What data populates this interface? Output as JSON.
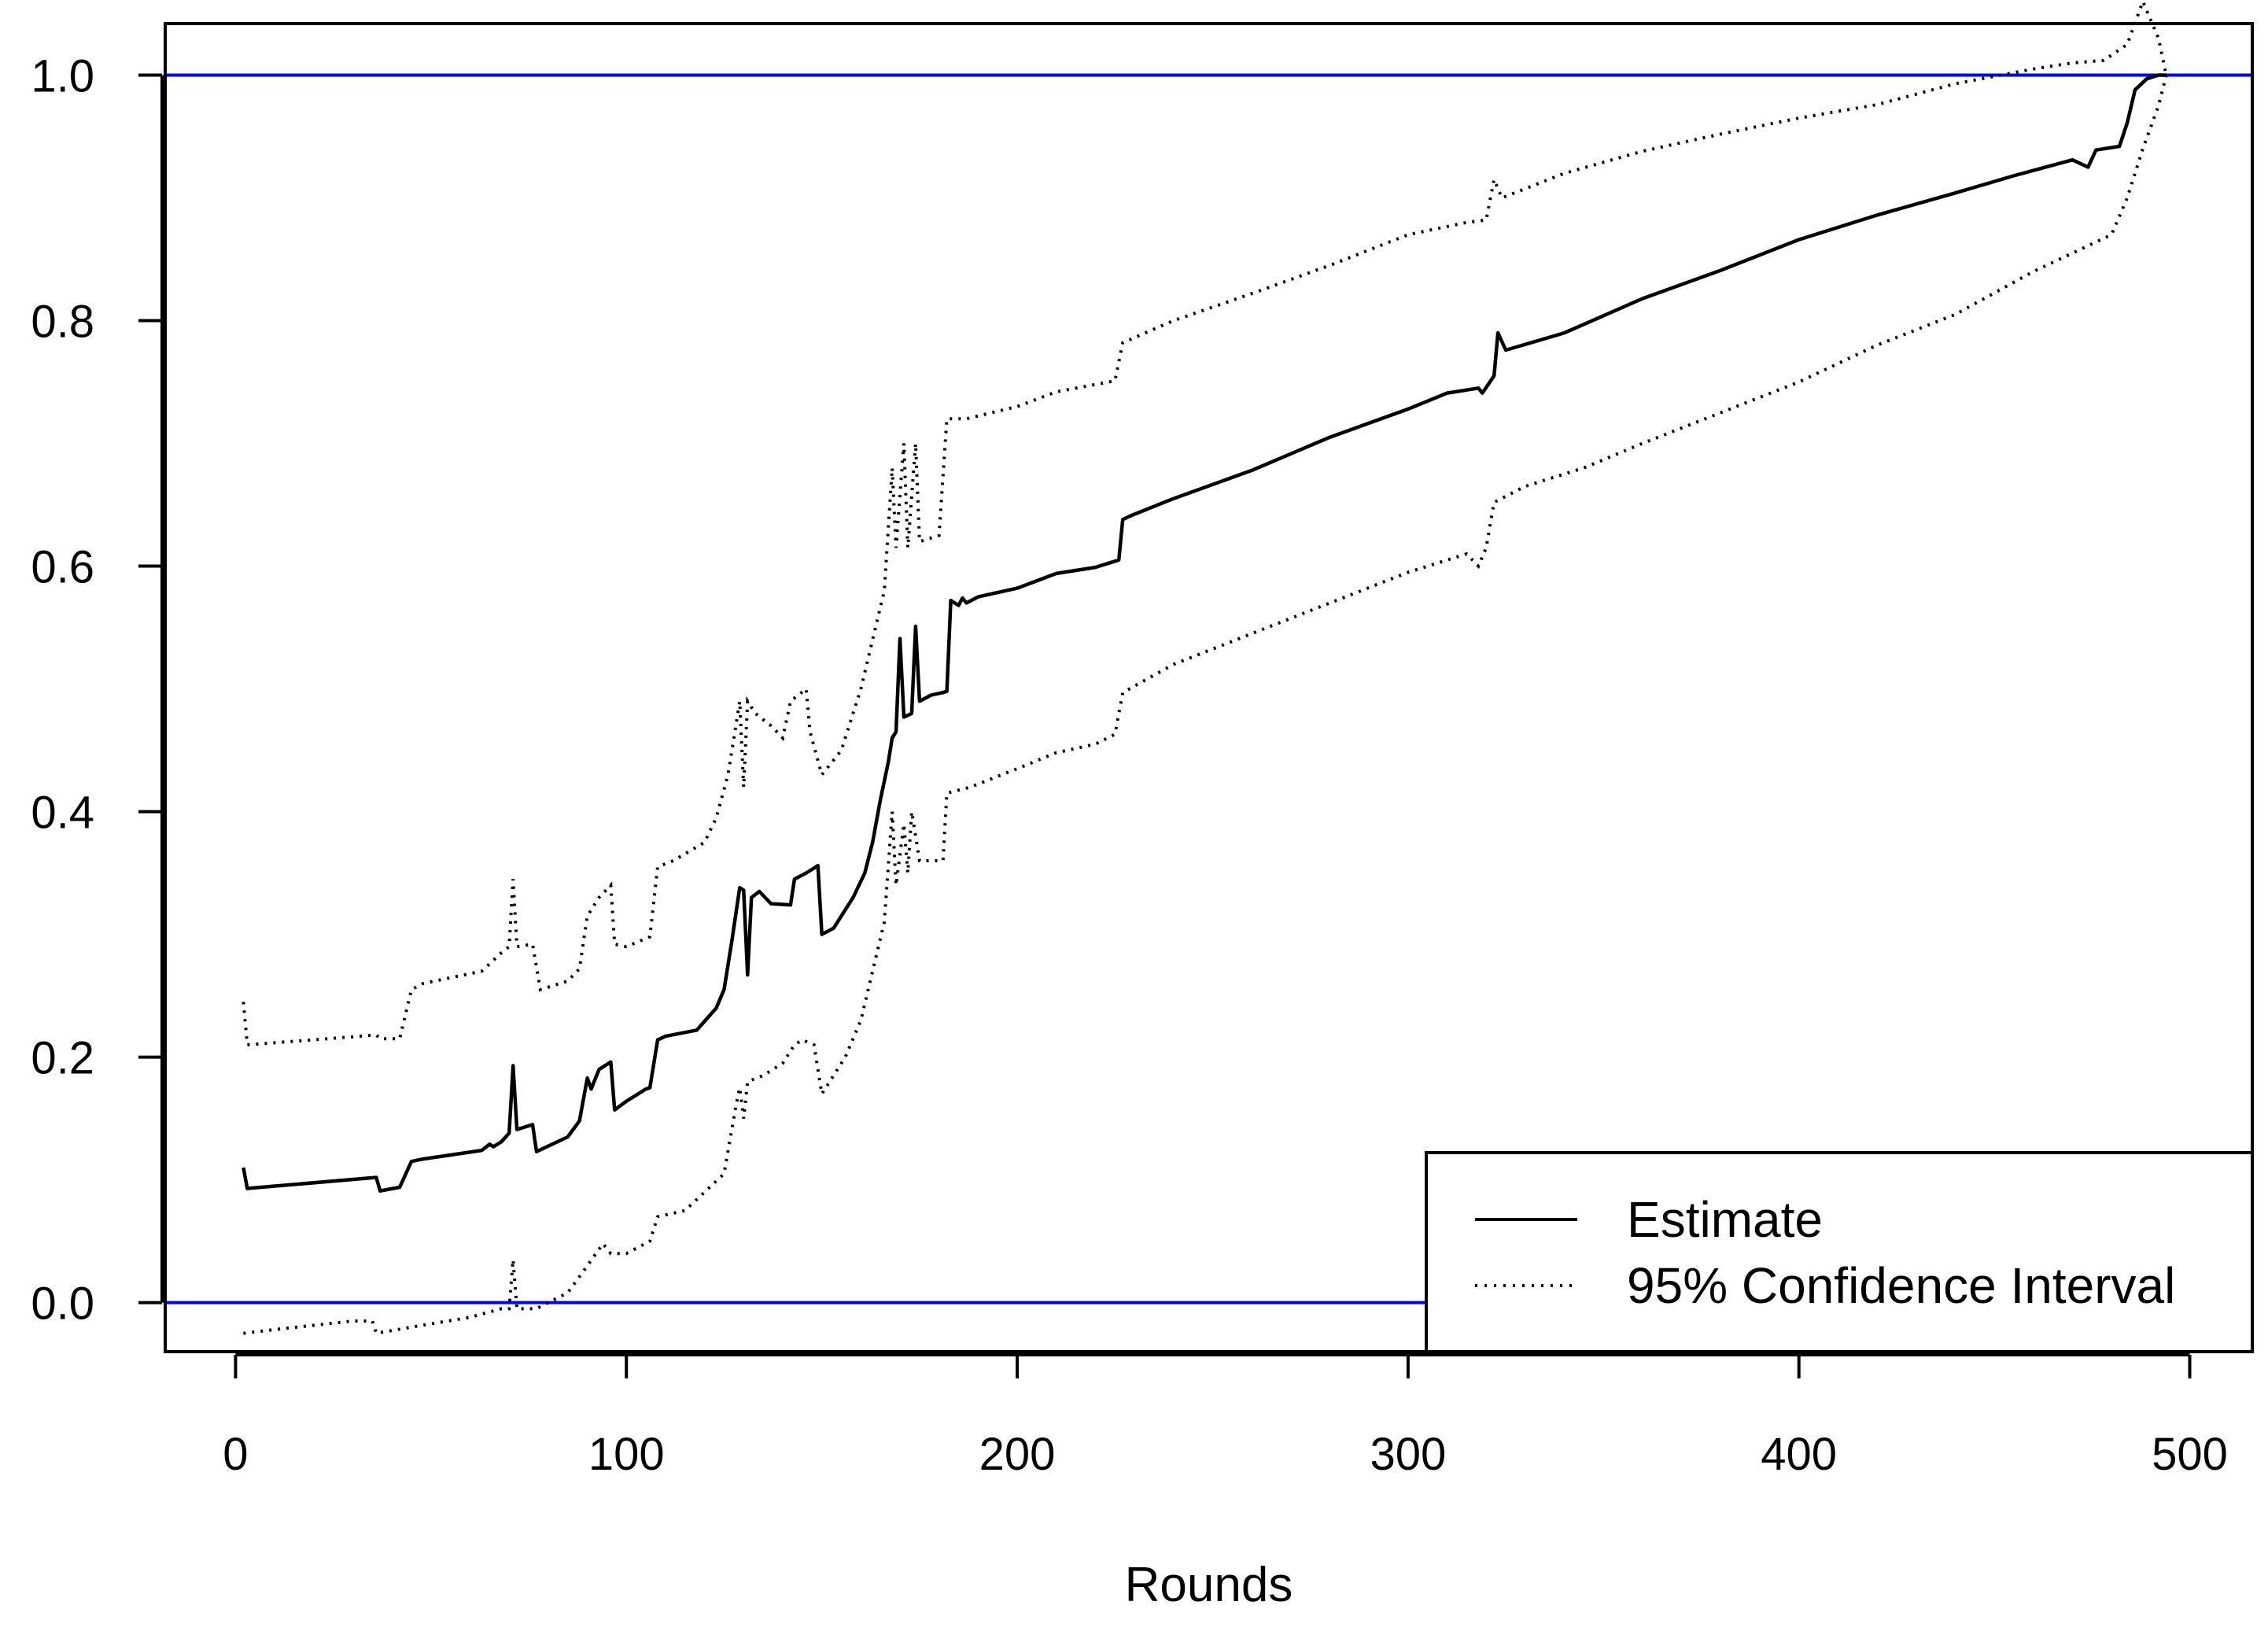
{
  "chart_data": {
    "type": "line",
    "title": "",
    "xlabel": "Rounds",
    "ylabel": "",
    "xlim": [
      -18,
      516
    ],
    "ylim": [
      -0.04,
      1.042
    ],
    "x_ticks": [
      0,
      100,
      200,
      300,
      400,
      500
    ],
    "x_tick_labels": [
      "0",
      "100",
      "200",
      "300",
      "400",
      "500"
    ],
    "y_ticks": [
      0.0,
      0.2,
      0.4,
      0.6,
      0.8,
      1.0
    ],
    "y_tick_labels": [
      "0.0",
      "0.2",
      "0.4",
      "0.6",
      "0.8",
      "1.0"
    ],
    "grid": false,
    "legend_position": "bottom-right",
    "reference_lines": [
      {
        "y": 1.0,
        "color": "#0000ee"
      },
      {
        "y": 0.0,
        "color": "#0000ee"
      }
    ],
    "series": [
      {
        "name": "Estimate",
        "style": "solid",
        "color": "#000000",
        "points": [
          [
            2,
            0.11
          ],
          [
            3,
            0.093
          ],
          [
            36,
            0.102
          ],
          [
            37,
            0.091
          ],
          [
            42,
            0.094
          ],
          [
            45,
            0.115
          ],
          [
            48,
            0.117
          ],
          [
            63,
            0.124
          ],
          [
            65,
            0.129
          ],
          [
            66,
            0.127
          ],
          [
            68,
            0.131
          ],
          [
            70,
            0.138
          ],
          [
            71,
            0.193
          ],
          [
            72,
            0.141
          ],
          [
            76,
            0.145
          ],
          [
            77,
            0.123
          ],
          [
            85,
            0.135
          ],
          [
            88,
            0.148
          ],
          [
            90,
            0.183
          ],
          [
            91,
            0.174
          ],
          [
            93,
            0.19
          ],
          [
            96,
            0.196
          ],
          [
            97,
            0.157
          ],
          [
            100,
            0.164
          ],
          [
            105,
            0.174
          ],
          [
            106,
            0.175
          ],
          [
            108,
            0.214
          ],
          [
            110,
            0.217
          ],
          [
            118,
            0.222
          ],
          [
            123,
            0.24
          ],
          [
            125,
            0.255
          ],
          [
            127,
            0.295
          ],
          [
            129,
            0.338
          ],
          [
            130,
            0.336
          ],
          [
            131,
            0.267
          ],
          [
            132,
            0.33
          ],
          [
            134,
            0.335
          ],
          [
            137,
            0.325
          ],
          [
            142,
            0.324
          ],
          [
            143,
            0.345
          ],
          [
            146,
            0.35
          ],
          [
            149,
            0.356
          ],
          [
            150,
            0.3
          ],
          [
            153,
            0.305
          ],
          [
            158,
            0.33
          ],
          [
            161,
            0.35
          ],
          [
            163,
            0.375
          ],
          [
            165,
            0.41
          ],
          [
            167,
            0.44
          ],
          [
            168,
            0.46
          ],
          [
            169,
            0.465
          ],
          [
            170,
            0.541
          ],
          [
            171,
            0.477
          ],
          [
            173,
            0.48
          ],
          [
            174,
            0.551
          ],
          [
            175,
            0.49
          ],
          [
            178,
            0.495
          ],
          [
            181,
            0.497
          ],
          [
            182,
            0.498
          ],
          [
            183,
            0.572
          ],
          [
            185,
            0.568
          ],
          [
            186,
            0.574
          ],
          [
            187,
            0.57
          ],
          [
            190,
            0.575
          ],
          [
            200,
            0.582
          ],
          [
            210,
            0.594
          ],
          [
            220,
            0.599
          ],
          [
            226,
            0.605
          ],
          [
            227,
            0.638
          ],
          [
            229,
            0.641
          ],
          [
            240,
            0.655
          ],
          [
            260,
            0.678
          ],
          [
            280,
            0.705
          ],
          [
            300,
            0.728
          ],
          [
            310,
            0.741
          ],
          [
            318,
            0.745
          ],
          [
            319,
            0.741
          ],
          [
            322,
            0.755
          ],
          [
            323,
            0.79
          ],
          [
            325,
            0.776
          ],
          [
            340,
            0.79
          ],
          [
            360,
            0.818
          ],
          [
            380,
            0.841
          ],
          [
            400,
            0.866
          ],
          [
            420,
            0.886
          ],
          [
            440,
            0.904
          ],
          [
            455,
            0.918
          ],
          [
            470,
            0.931
          ],
          [
            474,
            0.925
          ],
          [
            476,
            0.939
          ],
          [
            482,
            0.942
          ],
          [
            484,
            0.961
          ],
          [
            486,
            0.988
          ],
          [
            489,
            0.997
          ],
          [
            492,
            1.0
          ],
          [
            494,
            1.0
          ]
        ]
      },
      {
        "name": "95% Confidence Interval",
        "style": "dotted",
        "color": "#000000",
        "upper": [
          [
            2,
            0.245
          ],
          [
            3,
            0.21
          ],
          [
            36,
            0.218
          ],
          [
            37,
            0.215
          ],
          [
            42,
            0.215
          ],
          [
            45,
            0.255
          ],
          [
            48,
            0.26
          ],
          [
            63,
            0.27
          ],
          [
            68,
            0.285
          ],
          [
            70,
            0.29
          ],
          [
            71,
            0.345
          ],
          [
            72,
            0.29
          ],
          [
            76,
            0.292
          ],
          [
            78,
            0.255
          ],
          [
            85,
            0.262
          ],
          [
            88,
            0.272
          ],
          [
            90,
            0.315
          ],
          [
            93,
            0.33
          ],
          [
            96,
            0.34
          ],
          [
            97,
            0.292
          ],
          [
            100,
            0.29
          ],
          [
            106,
            0.298
          ],
          [
            108,
            0.355
          ],
          [
            112,
            0.36
          ],
          [
            120,
            0.375
          ],
          [
            123,
            0.395
          ],
          [
            126,
            0.43
          ],
          [
            128,
            0.47
          ],
          [
            129,
            0.49
          ],
          [
            130,
            0.42
          ],
          [
            131,
            0.49
          ],
          [
            133,
            0.48
          ],
          [
            137,
            0.47
          ],
          [
            140,
            0.46
          ],
          [
            142,
            0.49
          ],
          [
            146,
            0.5
          ],
          [
            147,
            0.465
          ],
          [
            150,
            0.43
          ],
          [
            155,
            0.45
          ],
          [
            160,
            0.5
          ],
          [
            163,
            0.54
          ],
          [
            166,
            0.58
          ],
          [
            168,
            0.68
          ],
          [
            169,
            0.615
          ],
          [
            171,
            0.7
          ],
          [
            172,
            0.615
          ],
          [
            174,
            0.7
          ],
          [
            175,
            0.62
          ],
          [
            180,
            0.625
          ],
          [
            182,
            0.72
          ],
          [
            187,
            0.72
          ],
          [
            200,
            0.73
          ],
          [
            210,
            0.742
          ],
          [
            220,
            0.748
          ],
          [
            225,
            0.751
          ],
          [
            227,
            0.782
          ],
          [
            240,
            0.8
          ],
          [
            260,
            0.822
          ],
          [
            280,
            0.845
          ],
          [
            300,
            0.87
          ],
          [
            315,
            0.88
          ],
          [
            320,
            0.882
          ],
          [
            322,
            0.915
          ],
          [
            324,
            0.9
          ],
          [
            340,
            0.92
          ],
          [
            360,
            0.938
          ],
          [
            380,
            0.952
          ],
          [
            400,
            0.965
          ],
          [
            420,
            0.976
          ],
          [
            440,
            0.993
          ],
          [
            460,
            1.005
          ],
          [
            470,
            1.01
          ],
          [
            478,
            1.012
          ],
          [
            484,
            1.025
          ],
          [
            488,
            1.06
          ],
          [
            492,
            1.03
          ],
          [
            494,
            1.0
          ]
        ],
        "lower": [
          [
            2,
            -0.025
          ],
          [
            10,
            -0.022
          ],
          [
            30,
            -0.015
          ],
          [
            35,
            -0.015
          ],
          [
            36,
            -0.025
          ],
          [
            45,
            -0.02
          ],
          [
            60,
            -0.012
          ],
          [
            68,
            -0.005
          ],
          [
            70,
            -0.005
          ],
          [
            71,
            0.035
          ],
          [
            72,
            -0.005
          ],
          [
            77,
            -0.005
          ],
          [
            80,
            0.0
          ],
          [
            85,
            0.008
          ],
          [
            90,
            0.03
          ],
          [
            94,
            0.048
          ],
          [
            96,
            0.04
          ],
          [
            100,
            0.04
          ],
          [
            106,
            0.05
          ],
          [
            108,
            0.07
          ],
          [
            115,
            0.075
          ],
          [
            120,
            0.09
          ],
          [
            125,
            0.105
          ],
          [
            128,
            0.16
          ],
          [
            129,
            0.175
          ],
          [
            130,
            0.15
          ],
          [
            131,
            0.18
          ],
          [
            135,
            0.185
          ],
          [
            140,
            0.195
          ],
          [
            143,
            0.21
          ],
          [
            145,
            0.214
          ],
          [
            148,
            0.21
          ],
          [
            150,
            0.17
          ],
          [
            156,
            0.2
          ],
          [
            160,
            0.23
          ],
          [
            163,
            0.27
          ],
          [
            166,
            0.31
          ],
          [
            168,
            0.4
          ],
          [
            169,
            0.34
          ],
          [
            171,
            0.39
          ],
          [
            172,
            0.35
          ],
          [
            173,
            0.4
          ],
          [
            175,
            0.36
          ],
          [
            181,
            0.36
          ],
          [
            182,
            0.415
          ],
          [
            188,
            0.42
          ],
          [
            200,
            0.435
          ],
          [
            210,
            0.448
          ],
          [
            220,
            0.455
          ],
          [
            225,
            0.463
          ],
          [
            227,
            0.497
          ],
          [
            240,
            0.52
          ],
          [
            260,
            0.545
          ],
          [
            280,
            0.57
          ],
          [
            300,
            0.595
          ],
          [
            315,
            0.61
          ],
          [
            318,
            0.6
          ],
          [
            320,
            0.615
          ],
          [
            322,
            0.652
          ],
          [
            330,
            0.665
          ],
          [
            345,
            0.68
          ],
          [
            360,
            0.7
          ],
          [
            380,
            0.725
          ],
          [
            400,
            0.75
          ],
          [
            420,
            0.78
          ],
          [
            440,
            0.805
          ],
          [
            460,
            0.84
          ],
          [
            470,
            0.855
          ],
          [
            480,
            0.87
          ],
          [
            484,
            0.9
          ],
          [
            488,
            0.94
          ],
          [
            492,
            0.975
          ],
          [
            494,
            1.0
          ]
        ]
      }
    ]
  }
}
